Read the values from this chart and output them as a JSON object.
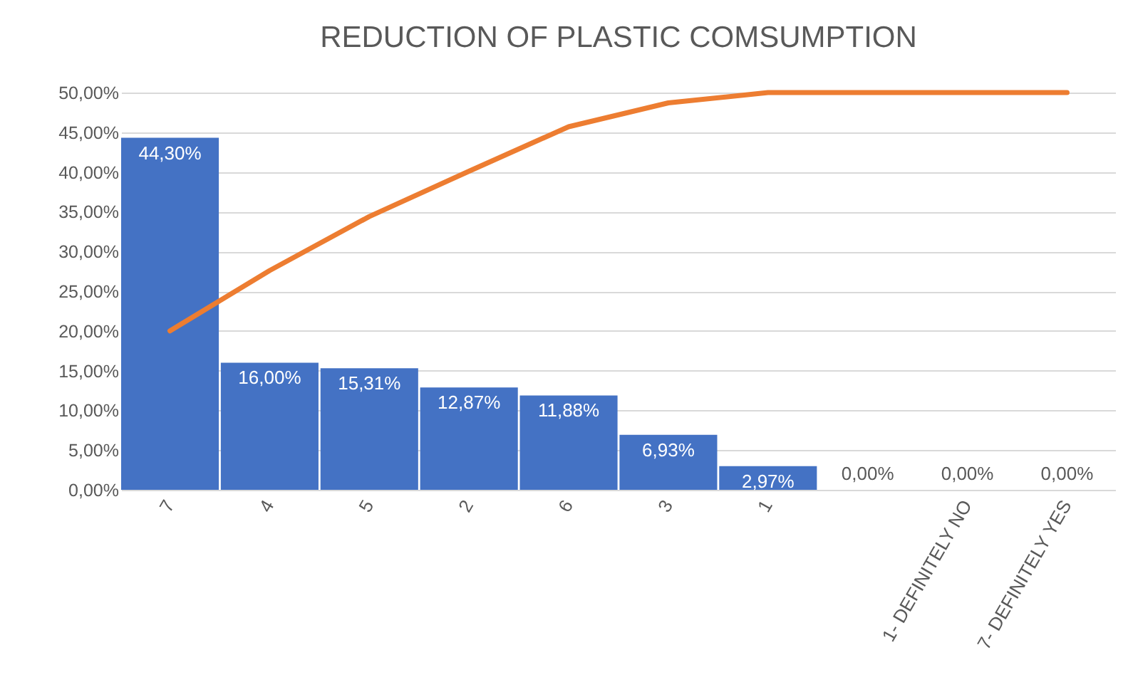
{
  "chart_data": {
    "type": "bar",
    "title": "REDUCTION OF PLASTIC COMSUMPTION",
    "categories": [
      "7",
      "4",
      "5",
      "2",
      "6",
      "3",
      "1",
      null,
      "1- DEFINITELY NO",
      "7- DEFINITELY YES"
    ],
    "series": [
      {
        "color": "#4472c4",
        "values": [
          44.3,
          16.0,
          15.31,
          12.87,
          11.88,
          6.93,
          2.97,
          0,
          0,
          0
        ],
        "value_labels": [
          "44,30%",
          "16,00%",
          "15,31%",
          "12,87%",
          "11,88%",
          "6,93%",
          "2,97%",
          "0,00%",
          "0,00%",
          "0,00%"
        ]
      },
      {
        "type": "line",
        "color": "#ed7d31",
        "values": [
          20.0,
          27.6,
          34.4,
          40.1,
          45.7,
          48.7,
          50,
          50,
          50,
          50
        ]
      }
    ],
    "ylim": [
      0,
      50
    ],
    "yticks": [
      {
        "value": 0,
        "label": "0,00%"
      },
      {
        "value": 5,
        "label": "5,00%"
      },
      {
        "value": 10,
        "label": "10,00%"
      },
      {
        "value": 15,
        "label": "15,00%"
      },
      {
        "value": 20,
        "label": "20,00%"
      },
      {
        "value": 25,
        "label": "25,00%"
      },
      {
        "value": 30,
        "label": "30,00%"
      },
      {
        "value": 35,
        "label": "35,00%"
      },
      {
        "value": 40,
        "label": "40,00%"
      },
      {
        "value": 45,
        "label": "45,00%"
      },
      {
        "value": 50,
        "label": "50,00%"
      }
    ],
    "grid": "y",
    "legend": false
  }
}
